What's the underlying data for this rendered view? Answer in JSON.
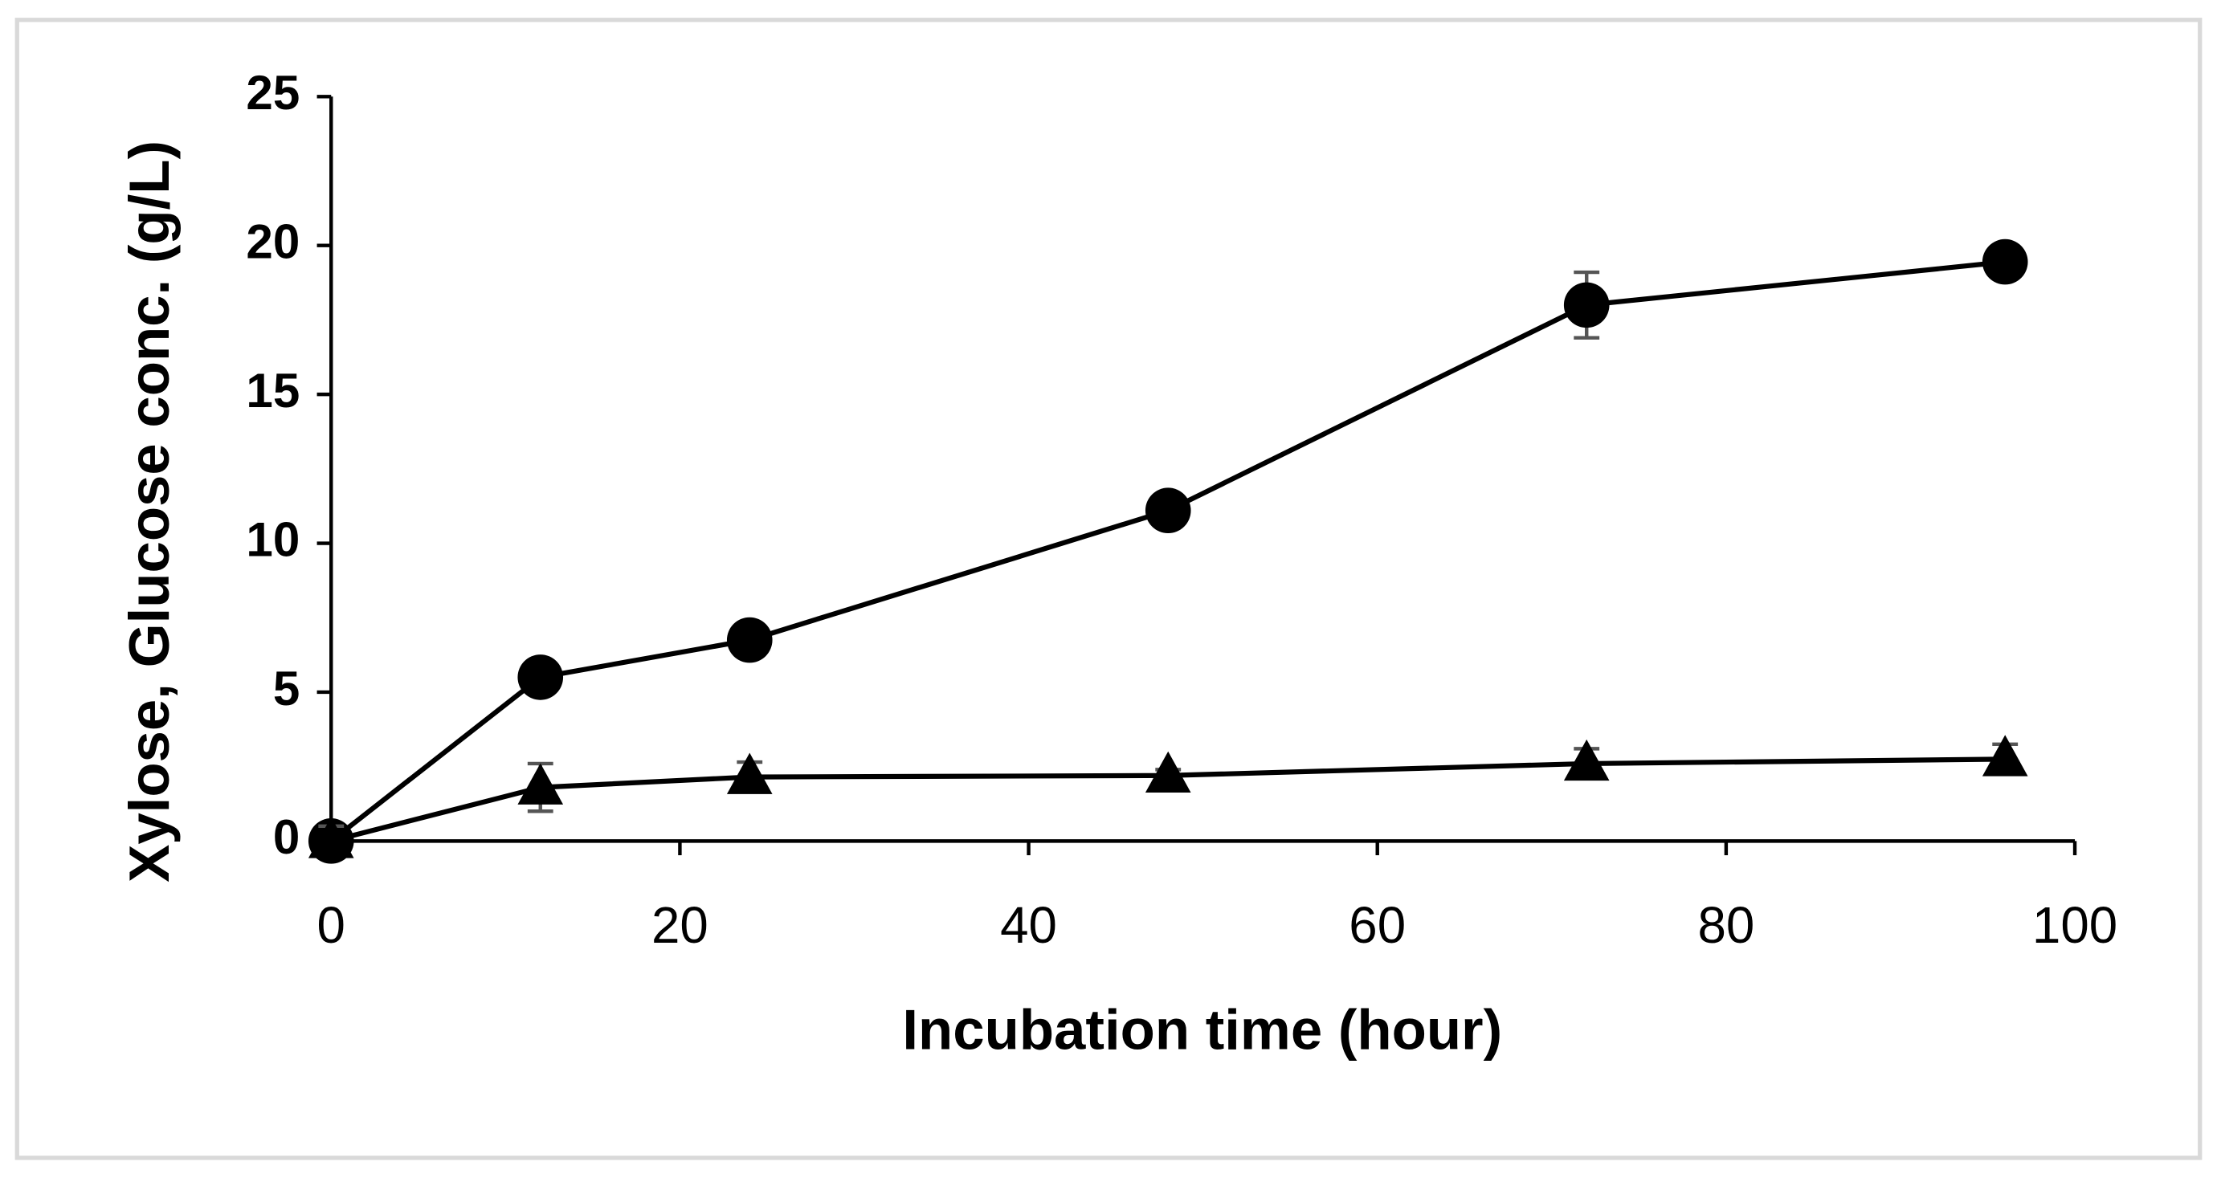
{
  "chart_data": {
    "type": "line",
    "x_label": "Incubation time (hour)",
    "y_label": "Xylose, Glucose  conc. (g/L)",
    "x": [
      0,
      12,
      24,
      48,
      72,
      96
    ],
    "series": [
      {
        "color": "#000000",
        "marker": "circle",
        "values": [
          0,
          5.5,
          6.75,
          11.1,
          18,
          19.45
        ],
        "errors": [
          0.3,
          0.2,
          0.2,
          0.2,
          1.1,
          0.2
        ]
      },
      {
        "color": "#000000",
        "marker": "triangle",
        "values": [
          0,
          1.8,
          2.15,
          2.2,
          2.6,
          2.75
        ],
        "errors": [
          0.5,
          0.8,
          0.5,
          0.2,
          0.5,
          0.5
        ]
      }
    ],
    "xlim": [
      0,
      100
    ],
    "xticks": [
      0,
      20,
      40,
      60,
      80,
      100
    ],
    "ylim": [
      0,
      25
    ],
    "yticks": [
      0,
      5,
      10,
      15,
      20,
      25
    ],
    "grid": false
  }
}
